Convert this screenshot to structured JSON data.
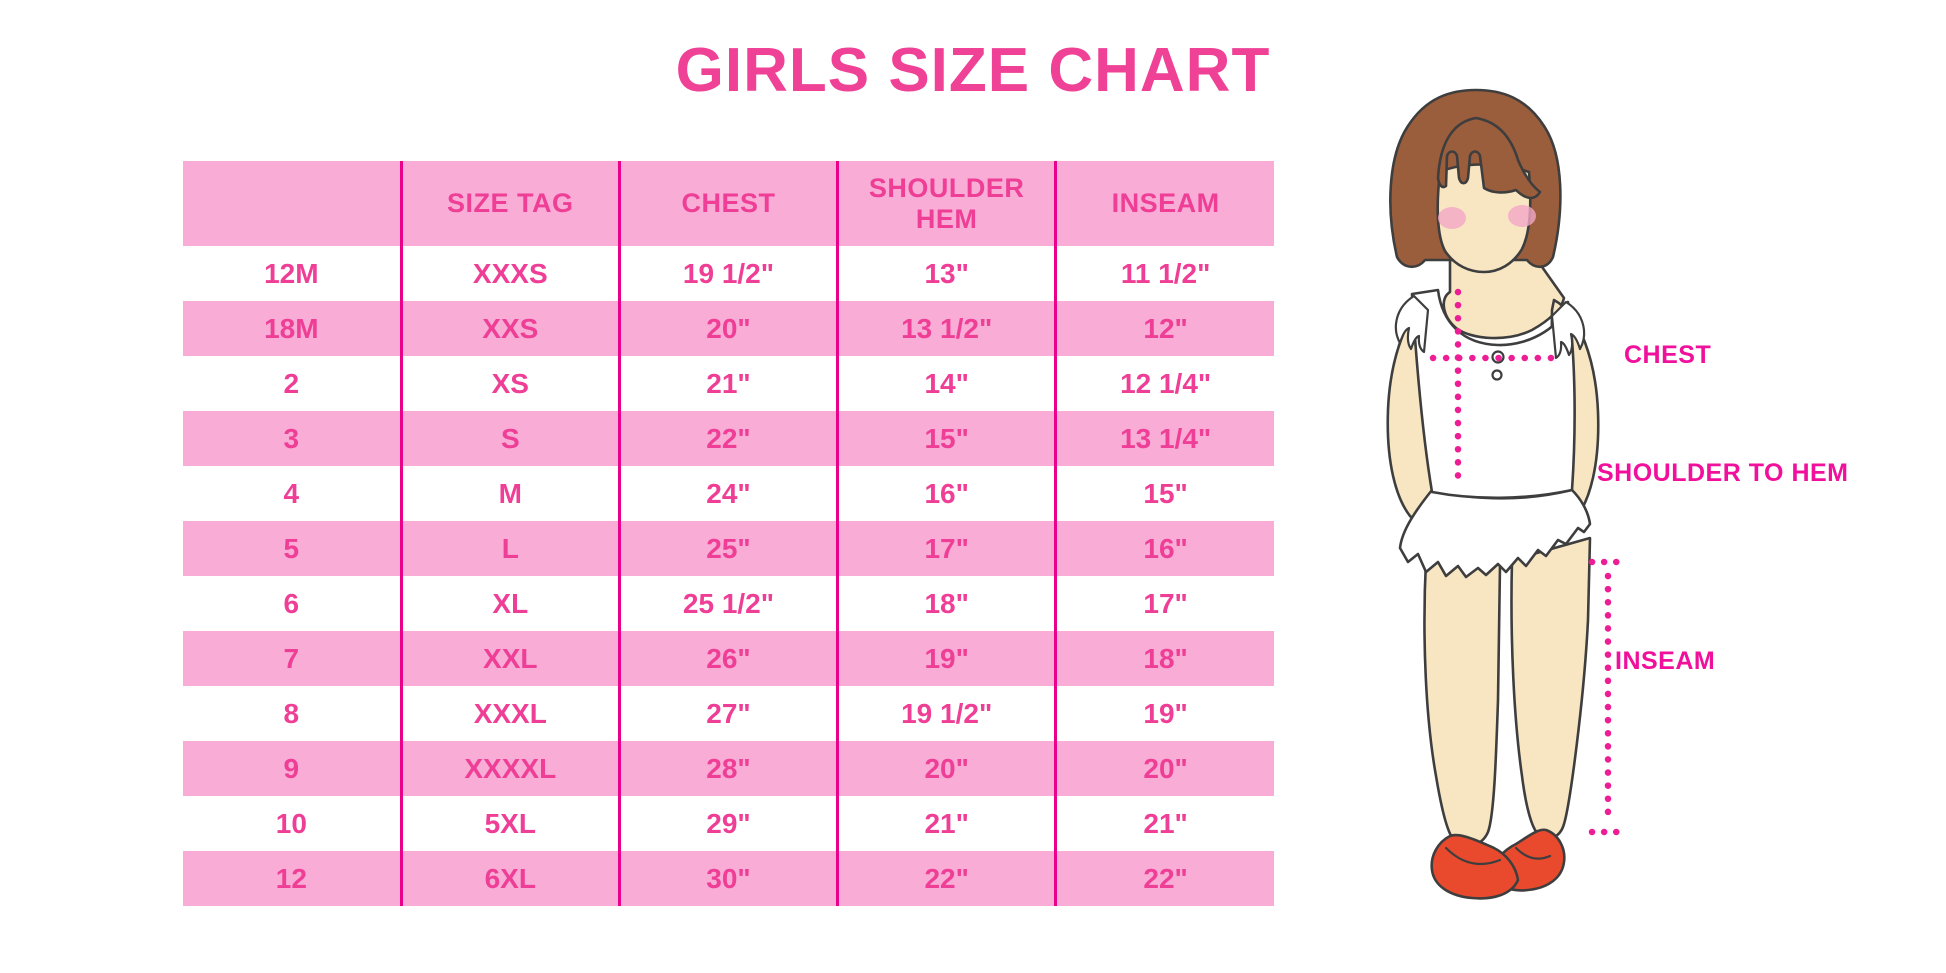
{
  "title": "GIRLS SIZE CHART",
  "colors": {
    "title_pink": "#EF4196",
    "band_pink": "#F8ACD6",
    "divider_magenta": "#E9018B",
    "table_text_pink": "#EF3E96",
    "label_magenta": "#F0109B",
    "dot_magenta": "#ED1E95",
    "hair_brown": "#9B5E3C",
    "skin": "#F8E6C3",
    "blush": "#F3A8C6",
    "shoe_red": "#E94A2E",
    "outline": "#3E3E3E"
  },
  "chart_data": {
    "type": "table",
    "title": "GIRLS SIZE CHART",
    "columns": [
      "",
      "SIZE TAG",
      "CHEST",
      "SHOULDER HEM",
      "INSEAM"
    ],
    "rows": [
      [
        "12M",
        "XXXS",
        "19 1/2\"",
        "13\"",
        "11 1/2\""
      ],
      [
        "18M",
        "XXS",
        "20\"",
        "13 1/2\"",
        "12\""
      ],
      [
        "2",
        "XS",
        "21\"",
        "14\"",
        "12 1/4\""
      ],
      [
        "3",
        "S",
        "22\"",
        "15\"",
        "13 1/4\""
      ],
      [
        "4",
        "M",
        "24\"",
        "16\"",
        "15\""
      ],
      [
        "5",
        "L",
        "25\"",
        "17\"",
        "16\""
      ],
      [
        "6",
        "XL",
        "25 1/2\"",
        "18\"",
        "17\""
      ],
      [
        "7",
        "XXL",
        "26\"",
        "19\"",
        "18\""
      ],
      [
        "8",
        "XXXL",
        "27\"",
        "19 1/2\"",
        "19\""
      ],
      [
        "9",
        "XXXXL",
        "28\"",
        "20\"",
        "20\""
      ],
      [
        "10",
        "5XL",
        "29\"",
        "21\"",
        "21\""
      ],
      [
        "12",
        "6XL",
        "30\"",
        "22\"",
        "22\""
      ]
    ],
    "row_striping": "header pink, then alternating white/pink",
    "grid": "vertical magenta dividers only, no horizontal lines"
  },
  "diagram": {
    "chest_label": "CHEST",
    "shoulder_to_hem_label": "SHOULDER TO HEM",
    "inseam_label": "INSEAM"
  }
}
